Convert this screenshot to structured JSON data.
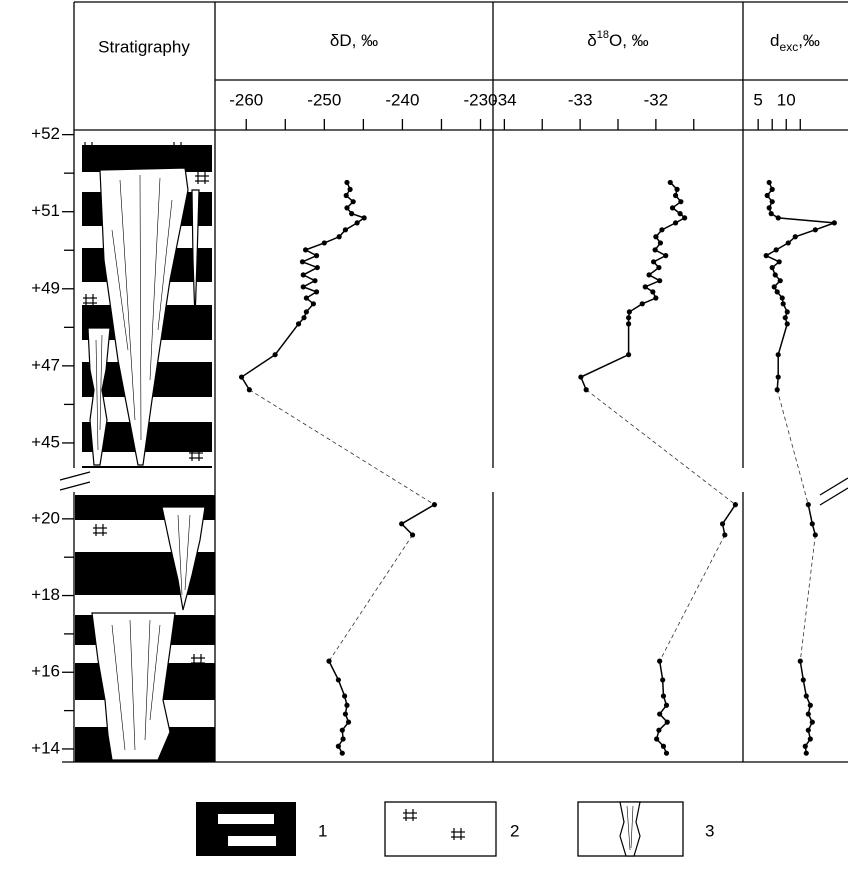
{
  "header": {
    "stratigraphy": "Stratigraphy"
  },
  "chart_data": {
    "type": "profile",
    "y": [
      51.38,
      51.29,
      51.21,
      51.13,
      51.05,
      50.95,
      50.84,
      50.71,
      50.53,
      50.35,
      50.19,
      50.01,
      49.86,
      49.7,
      49.55,
      49.36,
      49.21,
      49.05,
      48.92,
      48.76,
      48.61,
      48.4,
      48.25,
      48.09,
      47.29,
      46.71,
      46.38,
      20.37,
      19.87,
      19.58,
      16.29,
      15.8,
      15.38,
      15.14,
      14.91,
      14.7,
      14.49,
      14.26,
      14.07,
      13.89
    ],
    "depth_segments": [
      {
        "ylim": [
          52.06,
          44.35
        ],
        "yticks": [
          {
            "value": 52,
            "label": "+52"
          },
          {
            "value": 51,
            "label": "+51"
          },
          {
            "value": 49,
            "label": "+49"
          },
          {
            "value": 47,
            "label": "+47"
          },
          {
            "value": 45,
            "label": "+45"
          }
        ],
        "minor_yticks": [
          51.5,
          50,
          48,
          46
        ]
      },
      {
        "ylim": [
          20.7,
          13.66
        ],
        "yticks": [
          {
            "value": 20,
            "label": "+20"
          },
          {
            "value": 18,
            "label": "+18"
          },
          {
            "value": 16,
            "label": "+16"
          },
          {
            "value": 14,
            "label": "+14"
          }
        ],
        "minor_yticks": [
          19,
          17,
          15
        ]
      }
    ],
    "series": [
      {
        "name": [
          "δD, ‰"
        ],
        "color": "#000000",
        "xlim": [
          -264,
          -228.4
        ],
        "xticks": [
          -260,
          -250,
          -240,
          -230
        ],
        "minor_xticks": [
          -255,
          -245,
          -235
        ],
        "values": [
          -247.1,
          -246.7,
          -247.2,
          -246.3,
          -247.1,
          -246.5,
          -244.9,
          -245.8,
          -247.3,
          -248.1,
          -250.0,
          -252.4,
          -251.0,
          -252.8,
          -250.9,
          -252.7,
          -251.2,
          -252.7,
          -251.0,
          -252.3,
          -251.4,
          -252.3,
          -252.6,
          -253.3,
          -256.3,
          -260.6,
          -259.6,
          -235.9,
          -240.1,
          -238.7,
          -249.4,
          -248.2,
          -247.4,
          -247.1,
          -247.3,
          -246.9,
          -247.7,
          -247.6,
          -248.2,
          -247.7
        ]
      },
      {
        "name": [
          "δ",
          "18",
          "O, ‰"
        ],
        "color": "#000000",
        "xlim": [
          -34.15,
          -30.85
        ],
        "xticks": [
          -34,
          -33,
          -32
        ],
        "minor_xticks": [
          -33.5,
          -32.5,
          -31.5
        ],
        "values": [
          -31.81,
          -31.72,
          -31.74,
          -31.67,
          -31.78,
          -31.68,
          -31.62,
          -31.74,
          -31.92,
          -32.0,
          -31.94,
          -32.01,
          -31.87,
          -32.03,
          -31.96,
          -32.09,
          -31.95,
          -32.14,
          -32.04,
          -32.0,
          -32.18,
          -32.35,
          -32.36,
          -32.36,
          -32.36,
          -32.99,
          -32.92,
          -30.95,
          -31.12,
          -31.09,
          -31.95,
          -31.91,
          -31.9,
          -31.86,
          -31.95,
          -31.85,
          -31.96,
          -31.99,
          -31.9,
          -31.86
        ]
      },
      {
        "name": [
          "d",
          "exc",
          ",‰"
        ],
        "color": "#000000",
        "xlim": [
          2.3,
          21
        ],
        "xticks": [
          5,
          10
        ],
        "minor_xticks": [
          7.5,
          12.5
        ],
        "values": [
          6.96,
          7.5,
          6.61,
          7.5,
          6.96,
          7.32,
          8.57,
          18.57,
          15.18,
          11.61,
          10.36,
          8.21,
          6.43,
          8.75,
          7.5,
          8.04,
          8.93,
          7.86,
          8.39,
          9.29,
          9.46,
          10.18,
          9.82,
          10.18,
          8.57,
          8.57,
          8.39,
          13.93,
          14.64,
          15.18,
          12.5,
          13.04,
          13.57,
          14.29,
          13.93,
          14.64,
          13.93,
          14.29,
          13.39,
          13.57
        ]
      }
    ]
  },
  "legend": {
    "items": [
      "1",
      "2",
      "3"
    ]
  }
}
